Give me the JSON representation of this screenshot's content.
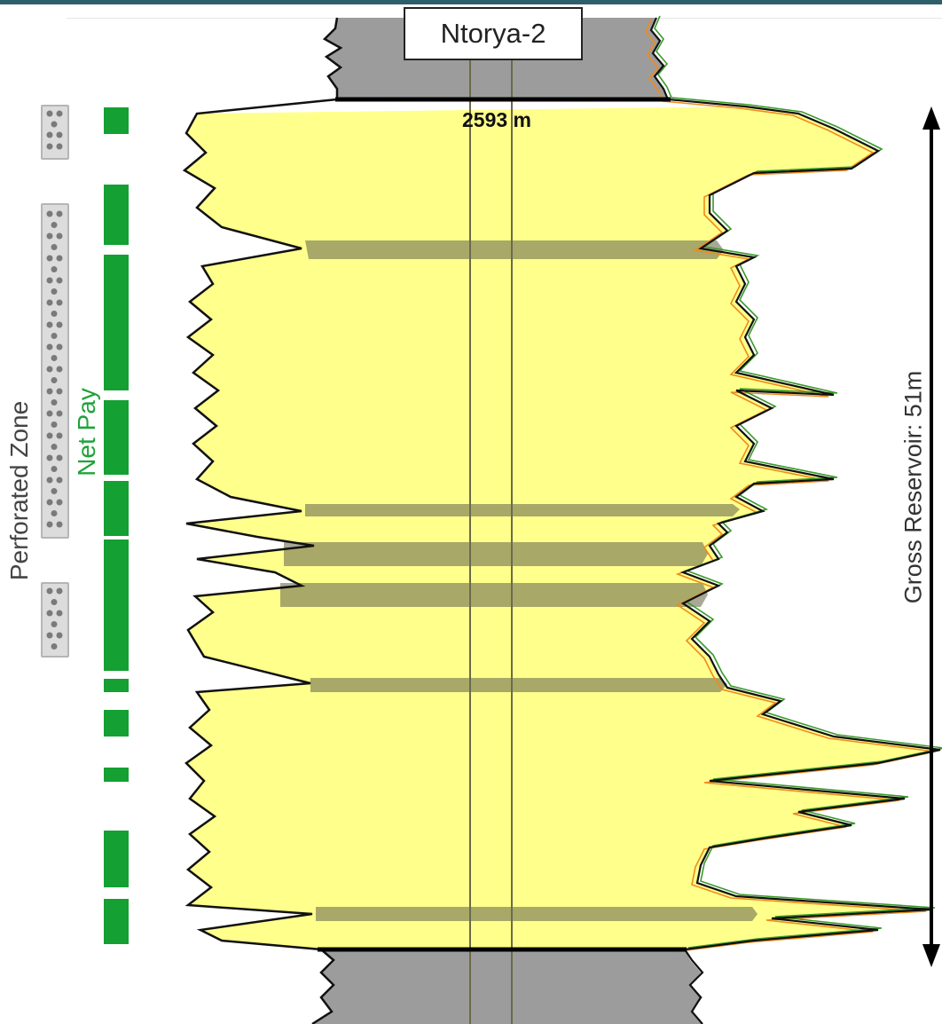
{
  "well_name": "Ntorya-2",
  "depth_label": "2593 m",
  "labels": {
    "perforated_zone": "Perforated Zone",
    "net_pay": "Net Pay",
    "gross_reservoir": "Gross Reservoir: 51m"
  },
  "colors": {
    "sand": "#ffff8c",
    "shale": "#999999",
    "shale_band": "#6e6e50",
    "net_pay": "#14a032",
    "perforation": "#dcdcdc",
    "header_bar": "#2e5e6a"
  }
}
